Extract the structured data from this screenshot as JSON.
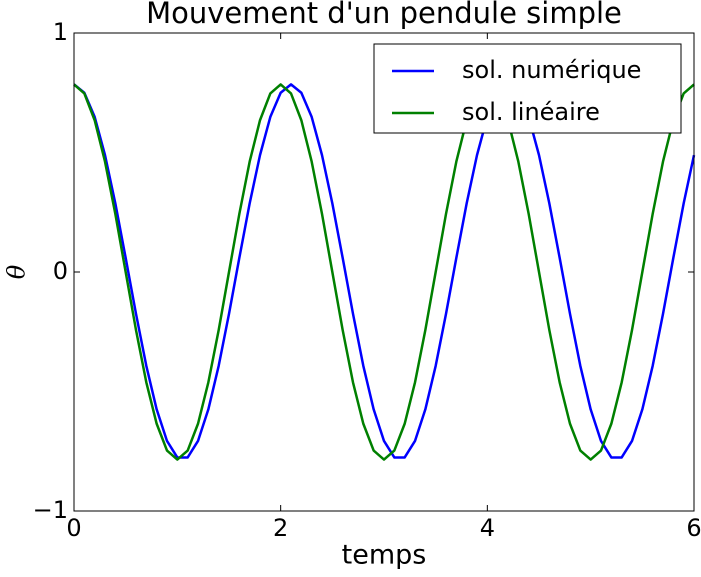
{
  "chart_data": {
    "type": "line",
    "title": "Mouvement d'un pendule simple",
    "xlabel": "temps",
    "ylabel": "θ",
    "x": [
      0,
      0.1,
      0.2,
      0.3,
      0.4,
      0.5,
      0.6,
      0.7,
      0.8,
      0.9,
      1,
      1.1,
      1.2,
      1.3,
      1.4,
      1.5,
      1.6,
      1.7,
      1.8,
      1.9,
      2,
      2.1,
      2.2,
      2.3,
      2.4,
      2.5,
      2.6,
      2.7,
      2.8,
      2.9,
      3,
      3.1,
      3.2,
      3.3,
      3.4,
      3.5,
      3.6,
      3.7,
      3.8,
      3.9,
      4,
      4.1,
      4.2,
      4.3,
      4.4,
      4.5,
      4.6,
      4.7,
      4.8,
      4.9,
      5,
      5.1,
      5.2,
      5.3,
      5.4,
      5.5,
      5.6,
      5.7,
      5.8,
      5.9,
      6
    ],
    "series": [
      {
        "name": "sol. numérique",
        "color": "#0000ff",
        "values": [
          0.785,
          0.75,
          0.649,
          0.489,
          0.287,
          0.059,
          -0.175,
          -0.393,
          -0.575,
          -0.707,
          -0.776,
          -0.776,
          -0.707,
          -0.575,
          -0.393,
          -0.175,
          0.059,
          0.287,
          0.489,
          0.649,
          0.75,
          0.785,
          0.75,
          0.649,
          0.489,
          0.287,
          0.059,
          -0.175,
          -0.393,
          -0.575,
          -0.707,
          -0.776,
          -0.776,
          -0.707,
          -0.575,
          -0.393,
          -0.175,
          0.059,
          0.287,
          0.489,
          0.649,
          0.75,
          0.785,
          0.75,
          0.649,
          0.489,
          0.287,
          0.059,
          -0.175,
          -0.393,
          -0.575,
          -0.707,
          -0.776,
          -0.776,
          -0.707,
          -0.575,
          -0.393,
          -0.175,
          0.059,
          0.287,
          0.489
        ]
      },
      {
        "name": "sol. linéaire",
        "color": "#008000",
        "values": [
          0.785,
          0.747,
          0.635,
          0.462,
          0.243,
          0,
          -0.243,
          -0.462,
          -0.635,
          -0.747,
          -0.785,
          -0.747,
          -0.635,
          -0.462,
          -0.243,
          0,
          0.243,
          0.462,
          0.635,
          0.747,
          0.785,
          0.747,
          0.635,
          0.462,
          0.243,
          0,
          -0.243,
          -0.462,
          -0.635,
          -0.747,
          -0.785,
          -0.747,
          -0.635,
          -0.462,
          -0.243,
          0,
          0.243,
          0.462,
          0.635,
          0.747,
          0.785,
          0.747,
          0.635,
          0.462,
          0.243,
          0,
          -0.243,
          -0.462,
          -0.635,
          -0.747,
          -0.785,
          -0.747,
          -0.635,
          -0.462,
          -0.243,
          0,
          0.243,
          0.462,
          0.635,
          0.747,
          0.785
        ]
      }
    ],
    "xlim": [
      0,
      6
    ],
    "xticks": [
      0,
      2,
      4,
      6
    ],
    "ylim": [
      -1,
      1
    ],
    "yticks": [
      {
        "value": -1,
        "label": "−1"
      },
      0,
      1
    ],
    "legend": "upper right"
  }
}
